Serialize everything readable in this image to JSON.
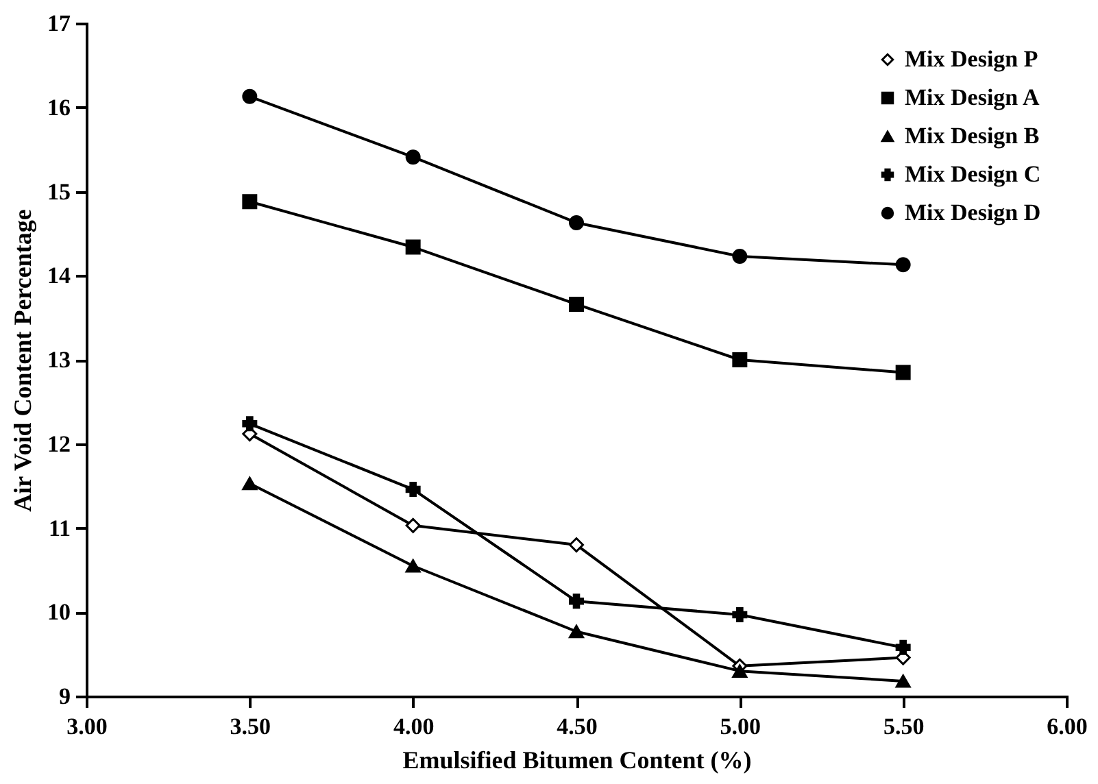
{
  "chart_data": {
    "type": "line",
    "xlabel": "Emulsified Bitumen Content (%)",
    "ylabel": "Air Void Content Percentage",
    "x": [
      3.5,
      4.0,
      4.5,
      5.0,
      5.5
    ],
    "series": [
      {
        "name": "Mix Design P",
        "color": "#000000",
        "marker": "diamond",
        "values": [
          12.12,
          11.03,
          10.8,
          9.36,
          9.46
        ]
      },
      {
        "name": "Mix Design A",
        "color": "#000000",
        "marker": "square",
        "values": [
          14.88,
          14.34,
          13.66,
          13.0,
          12.85
        ]
      },
      {
        "name": "Mix Design B",
        "color": "#000000",
        "marker": "triangle",
        "values": [
          11.53,
          10.55,
          9.77,
          9.3,
          9.18
        ]
      },
      {
        "name": "Mix Design C",
        "color": "#000000",
        "marker": "cross",
        "values": [
          12.24,
          11.46,
          10.13,
          9.97,
          9.58
        ]
      },
      {
        "name": "Mix Design D",
        "color": "#000000",
        "marker": "circle",
        "values": [
          16.13,
          15.41,
          14.63,
          14.23,
          14.13
        ]
      }
    ],
    "xlim": [
      3.0,
      6.0
    ],
    "xticks": [
      {
        "value": 3.0,
        "label": "3.00"
      },
      {
        "value": 3.5,
        "label": "3.50"
      },
      {
        "value": 4.0,
        "label": "4.00"
      },
      {
        "value": 4.5,
        "label": "4.50"
      },
      {
        "value": 5.0,
        "label": "5.00"
      },
      {
        "value": 5.5,
        "label": "5.50"
      },
      {
        "value": 6.0,
        "label": "6.00"
      }
    ],
    "ylim": [
      9,
      17
    ],
    "yticks": [
      9,
      10,
      11,
      12,
      13,
      14,
      15,
      16,
      17
    ],
    "grid": false,
    "legend": "top right",
    "line_style": "solid"
  }
}
